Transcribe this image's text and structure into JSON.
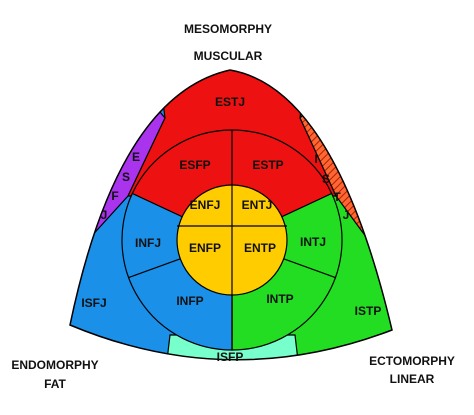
{
  "header": {
    "title": "MESOMORPHY",
    "subtitle": "MUSCULAR"
  },
  "corners": {
    "left": [
      "ENDOMORPHY",
      "FAT"
    ],
    "right": [
      "ECTOMORPHY",
      "LINEAR"
    ]
  },
  "outer": {
    "top": "ESTJ",
    "left": "ISFJ",
    "right": "ISTP",
    "bottom": "ISFP",
    "left_strip": [
      "E",
      "S",
      "F",
      "J"
    ],
    "right_strip": [
      "I",
      "S",
      "T",
      "J"
    ]
  },
  "ring": [
    "ESFP",
    "ESTP",
    "INFJ",
    "INTJ",
    "INFP",
    "INTP"
  ],
  "core": [
    "ENFJ",
    "ENTJ",
    "ENFP",
    "ENTP"
  ]
}
